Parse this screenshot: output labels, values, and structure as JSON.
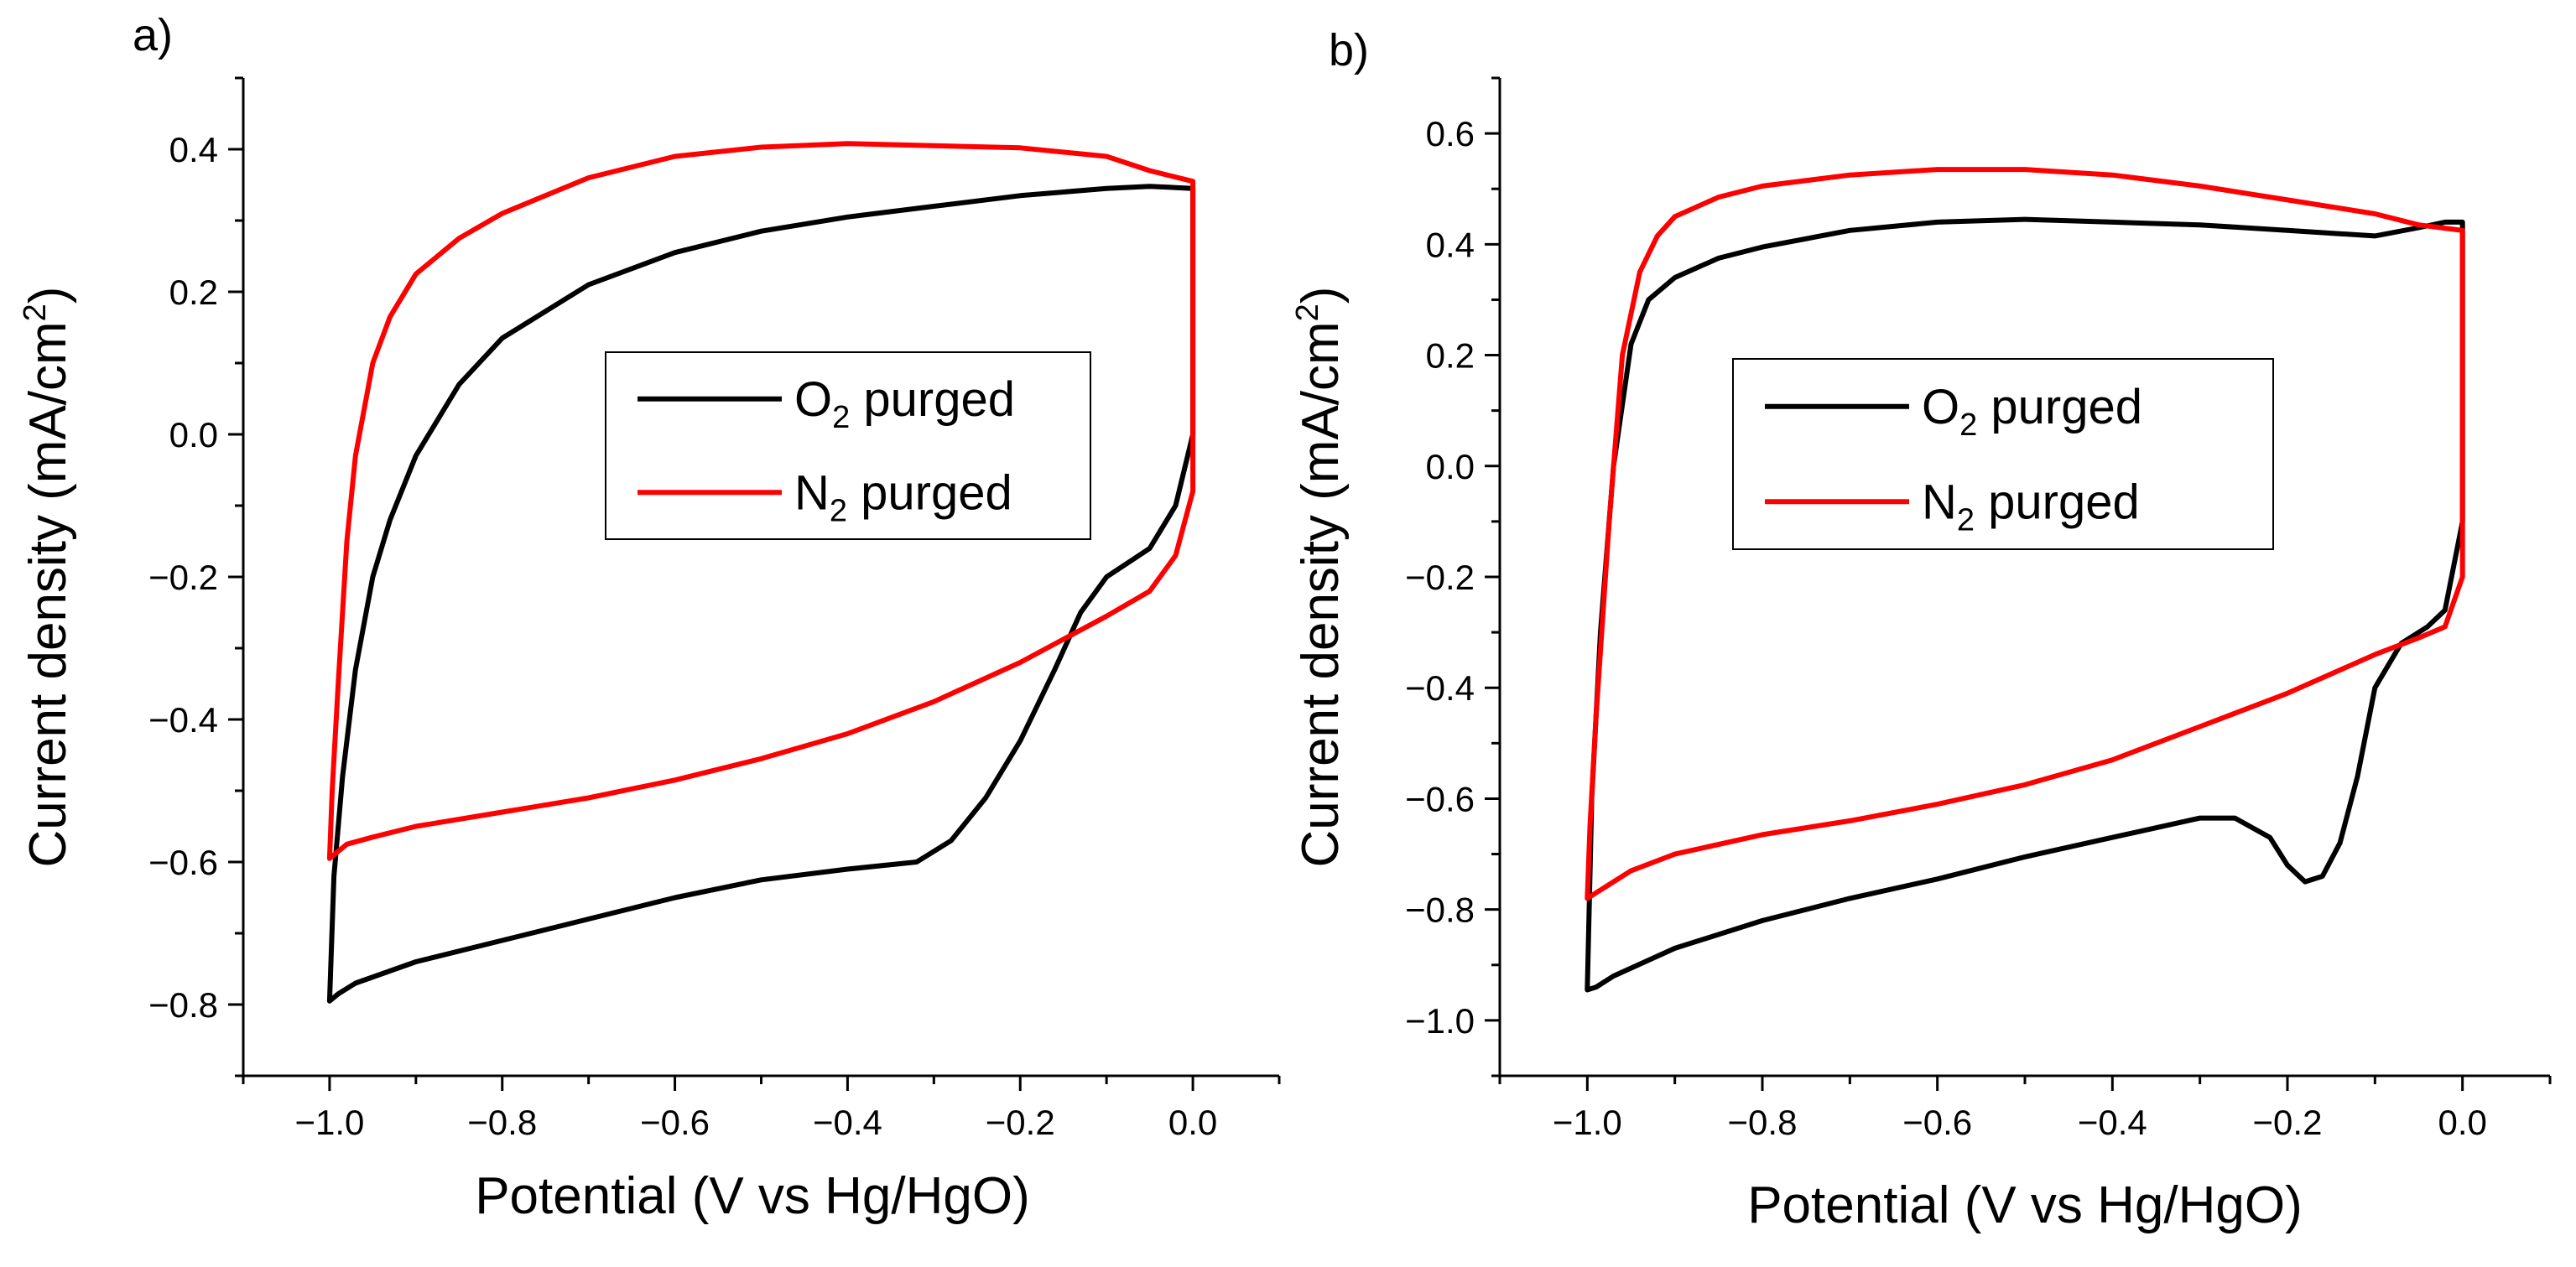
{
  "chart_data": [
    {
      "type": "line",
      "panel_label": "a)",
      "title": "",
      "xlabel": "Potential (V vs Hg/HgO)",
      "ylabel_parts": {
        "main": "Current density (mA/cm",
        "sup": "2",
        "end": ")"
      },
      "xlim": [
        -1.1,
        0.1
      ],
      "ylim": [
        -0.9,
        0.5
      ],
      "x_ticks": [
        -1.0,
        -0.8,
        -0.6,
        -0.4,
        -0.2,
        0.0
      ],
      "x_tick_labels": [
        "−1.0",
        "−0.8",
        "−0.6",
        "−0.4",
        "−0.2",
        "0.0"
      ],
      "y_ticks": [
        -0.8,
        -0.6,
        -0.4,
        -0.2,
        0.0,
        0.2,
        0.4
      ],
      "y_tick_labels": [
        "−0.8",
        "−0.6",
        "−0.4",
        "−0.2",
        "0.0",
        "0.2",
        "0.4"
      ],
      "legend": {
        "placement": "center-right",
        "entries": [
          {
            "label_main": "O",
            "label_sub": "2",
            "label_rest": " purged",
            "color": "#000000"
          },
          {
            "label_main": "N",
            "label_sub": "2",
            "label_rest": " purged",
            "color": "#ff0000"
          }
        ]
      },
      "series": [
        {
          "name": "O2 purged",
          "color": "#000000",
          "points": [
            [
              0.0,
              0.345
            ],
            [
              -0.05,
              0.348
            ],
            [
              -0.1,
              0.345
            ],
            [
              -0.2,
              0.335
            ],
            [
              -0.3,
              0.32
            ],
            [
              -0.4,
              0.305
            ],
            [
              -0.5,
              0.285
            ],
            [
              -0.6,
              0.255
            ],
            [
              -0.7,
              0.21
            ],
            [
              -0.8,
              0.135
            ],
            [
              -0.85,
              0.07
            ],
            [
              -0.9,
              -0.03
            ],
            [
              -0.93,
              -0.12
            ],
            [
              -0.95,
              -0.2
            ],
            [
              -0.97,
              -0.33
            ],
            [
              -0.985,
              -0.48
            ],
            [
              -0.995,
              -0.62
            ],
            [
              -1.0,
              -0.795
            ],
            [
              -0.99,
              -0.785
            ],
            [
              -0.97,
              -0.77
            ],
            [
              -0.9,
              -0.74
            ],
            [
              -0.8,
              -0.71
            ],
            [
              -0.7,
              -0.68
            ],
            [
              -0.6,
              -0.65
            ],
            [
              -0.5,
              -0.625
            ],
            [
              -0.4,
              -0.61
            ],
            [
              -0.32,
              -0.6
            ],
            [
              -0.28,
              -0.57
            ],
            [
              -0.24,
              -0.51
            ],
            [
              -0.2,
              -0.43
            ],
            [
              -0.16,
              -0.33
            ],
            [
              -0.13,
              -0.25
            ],
            [
              -0.1,
              -0.2
            ],
            [
              -0.05,
              -0.16
            ],
            [
              -0.02,
              -0.1
            ],
            [
              0.0,
              0.0
            ],
            [
              0.0,
              0.345
            ]
          ]
        },
        {
          "name": "N2 purged",
          "color": "#ff0000",
          "points": [
            [
              0.0,
              0.355
            ],
            [
              -0.05,
              0.37
            ],
            [
              -0.1,
              0.39
            ],
            [
              -0.2,
              0.402
            ],
            [
              -0.3,
              0.405
            ],
            [
              -0.4,
              0.408
            ],
            [
              -0.5,
              0.403
            ],
            [
              -0.6,
              0.39
            ],
            [
              -0.7,
              0.36
            ],
            [
              -0.8,
              0.31
            ],
            [
              -0.85,
              0.275
            ],
            [
              -0.9,
              0.225
            ],
            [
              -0.93,
              0.165
            ],
            [
              -0.95,
              0.1
            ],
            [
              -0.97,
              -0.03
            ],
            [
              -0.98,
              -0.15
            ],
            [
              -0.99,
              -0.35
            ],
            [
              -0.997,
              -0.5
            ],
            [
              -1.0,
              -0.595
            ],
            [
              -0.98,
              -0.575
            ],
            [
              -0.95,
              -0.565
            ],
            [
              -0.9,
              -0.55
            ],
            [
              -0.8,
              -0.53
            ],
            [
              -0.7,
              -0.51
            ],
            [
              -0.6,
              -0.485
            ],
            [
              -0.5,
              -0.455
            ],
            [
              -0.4,
              -0.42
            ],
            [
              -0.3,
              -0.375
            ],
            [
              -0.2,
              -0.32
            ],
            [
              -0.1,
              -0.255
            ],
            [
              -0.05,
              -0.22
            ],
            [
              -0.02,
              -0.17
            ],
            [
              0.0,
              -0.08
            ],
            [
              0.0,
              0.1
            ],
            [
              0.0,
              0.355
            ]
          ]
        }
      ]
    },
    {
      "type": "line",
      "panel_label": "b)",
      "title": "",
      "xlabel": "Potential (V vs Hg/HgO)",
      "ylabel_parts": {
        "main": "Current density (mA/cm",
        "sup": "2",
        "end": ")"
      },
      "xlim": [
        -1.1,
        0.1
      ],
      "ylim": [
        -1.1,
        0.7
      ],
      "x_ticks": [
        -1.0,
        -0.8,
        -0.6,
        -0.4,
        -0.2,
        0.0
      ],
      "x_tick_labels": [
        "−1.0",
        "−0.8",
        "−0.6",
        "−0.4",
        "−0.2",
        "0.0"
      ],
      "y_ticks": [
        -1.0,
        -0.8,
        -0.6,
        -0.4,
        -0.2,
        0.0,
        0.2,
        0.4,
        0.6
      ],
      "y_tick_labels": [
        "−1.0",
        "−0.8",
        "−0.6",
        "−0.4",
        "−0.2",
        "0.0",
        "0.2",
        "0.4",
        "0.6"
      ],
      "legend": {
        "placement": "center",
        "entries": [
          {
            "label_main": "O",
            "label_sub": "2",
            "label_rest": " purged",
            "color": "#000000"
          },
          {
            "label_main": "N",
            "label_sub": "2",
            "label_rest": " purged",
            "color": "#ff0000"
          }
        ]
      },
      "series": [
        {
          "name": "O2 purged",
          "color": "#000000",
          "points": [
            [
              0.0,
              0.44
            ],
            [
              -0.02,
              0.44
            ],
            [
              -0.05,
              0.43
            ],
            [
              -0.1,
              0.415
            ],
            [
              -0.15,
              0.42
            ],
            [
              -0.2,
              0.425
            ],
            [
              -0.3,
              0.435
            ],
            [
              -0.4,
              0.44
            ],
            [
              -0.5,
              0.445
            ],
            [
              -0.6,
              0.44
            ],
            [
              -0.7,
              0.425
            ],
            [
              -0.8,
              0.395
            ],
            [
              -0.85,
              0.375
            ],
            [
              -0.9,
              0.34
            ],
            [
              -0.93,
              0.3
            ],
            [
              -0.95,
              0.22
            ],
            [
              -0.97,
              0.0
            ],
            [
              -0.985,
              -0.3
            ],
            [
              -0.995,
              -0.6
            ],
            [
              -1.0,
              -0.945
            ],
            [
              -0.99,
              -0.94
            ],
            [
              -0.97,
              -0.92
            ],
            [
              -0.9,
              -0.87
            ],
            [
              -0.8,
              -0.82
            ],
            [
              -0.7,
              -0.78
            ],
            [
              -0.6,
              -0.745
            ],
            [
              -0.5,
              -0.705
            ],
            [
              -0.4,
              -0.67
            ],
            [
              -0.3,
              -0.635
            ],
            [
              -0.26,
              -0.635
            ],
            [
              -0.22,
              -0.67
            ],
            [
              -0.2,
              -0.72
            ],
            [
              -0.18,
              -0.75
            ],
            [
              -0.16,
              -0.74
            ],
            [
              -0.14,
              -0.68
            ],
            [
              -0.12,
              -0.56
            ],
            [
              -0.1,
              -0.4
            ],
            [
              -0.07,
              -0.32
            ],
            [
              -0.04,
              -0.29
            ],
            [
              -0.02,
              -0.26
            ],
            [
              0.0,
              -0.1
            ],
            [
              0.0,
              0.44
            ]
          ]
        },
        {
          "name": "N2 purged",
          "color": "#ff0000",
          "points": [
            [
              0.0,
              0.425
            ],
            [
              -0.05,
              0.435
            ],
            [
              -0.1,
              0.455
            ],
            [
              -0.2,
              0.48
            ],
            [
              -0.3,
              0.505
            ],
            [
              -0.4,
              0.525
            ],
            [
              -0.5,
              0.535
            ],
            [
              -0.6,
              0.535
            ],
            [
              -0.7,
              0.525
            ],
            [
              -0.8,
              0.505
            ],
            [
              -0.85,
              0.485
            ],
            [
              -0.9,
              0.45
            ],
            [
              -0.92,
              0.415
            ],
            [
              -0.94,
              0.35
            ],
            [
              -0.96,
              0.2
            ],
            [
              -0.975,
              -0.1
            ],
            [
              -0.99,
              -0.45
            ],
            [
              -0.997,
              -0.65
            ],
            [
              -1.0,
              -0.78
            ],
            [
              -0.98,
              -0.76
            ],
            [
              -0.95,
              -0.73
            ],
            [
              -0.9,
              -0.7
            ],
            [
              -0.8,
              -0.665
            ],
            [
              -0.7,
              -0.64
            ],
            [
              -0.6,
              -0.61
            ],
            [
              -0.5,
              -0.575
            ],
            [
              -0.4,
              -0.53
            ],
            [
              -0.3,
              -0.47
            ],
            [
              -0.2,
              -0.41
            ],
            [
              -0.1,
              -0.34
            ],
            [
              -0.05,
              -0.31
            ],
            [
              -0.02,
              -0.29
            ],
            [
              0.0,
              -0.2
            ],
            [
              0.0,
              0.425
            ]
          ]
        }
      ]
    }
  ]
}
